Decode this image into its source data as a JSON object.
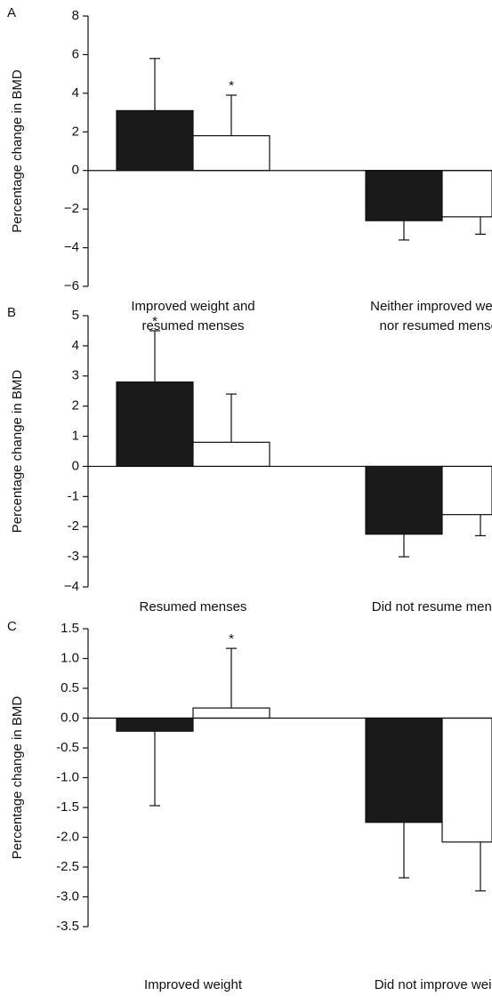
{
  "chart_data": [
    {
      "type": "bar",
      "panel_label": "A",
      "ylabel": "Percentage change in BMD",
      "categories": [
        [
          "Improved weight and",
          "resumed menses"
        ],
        [
          "Neither improved weight",
          "nor resumed menses"
        ]
      ],
      "series": [
        {
          "color": "#1a1a1a",
          "values": [
            3.1,
            -2.6
          ],
          "errors": [
            2.7,
            1.0
          ]
        },
        {
          "color": "#ffffff",
          "values": [
            1.8,
            -2.4
          ],
          "errors": [
            2.1,
            0.9
          ]
        }
      ],
      "annotations": [
        {
          "text": "*",
          "series": 1,
          "category": 0
        }
      ],
      "ylim": [
        -6,
        8
      ],
      "yticks": [
        {
          "value": -6,
          "label": "−6"
        },
        {
          "value": -4,
          "label": "−4"
        },
        {
          "value": -2,
          "label": "−2"
        },
        0,
        2,
        4,
        6,
        8
      ]
    },
    {
      "type": "bar",
      "panel_label": "B",
      "ylabel": "Percentage change in BMD",
      "categories": [
        [
          "Resumed menses"
        ],
        [
          "Did not resume menses"
        ]
      ],
      "series": [
        {
          "color": "#1a1a1a",
          "values": [
            2.8,
            -2.25
          ],
          "errors": [
            1.7,
            0.75
          ]
        },
        {
          "color": "#ffffff",
          "values": [
            0.8,
            -1.6
          ],
          "errors": [
            1.6,
            0.7
          ]
        }
      ],
      "annotations": [
        {
          "text": "*",
          "series": 0,
          "category": 0
        }
      ],
      "ylim": [
        -4,
        5
      ],
      "yticks": [
        {
          "value": -4,
          "label": "−4"
        },
        -3,
        -2,
        -1,
        0,
        1,
        2,
        3,
        4,
        5
      ]
    },
    {
      "type": "bar",
      "panel_label": "C",
      "ylabel": "Percentage change in BMD",
      "categories": [
        [
          "Improved weight"
        ],
        [
          "Did not improve weight"
        ]
      ],
      "series": [
        {
          "color": "#1a1a1a",
          "values": [
            -0.22,
            -1.75
          ],
          "errors": [
            1.25,
            0.93
          ]
        },
        {
          "color": "#ffffff",
          "values": [
            0.17,
            -2.08
          ],
          "errors": [
            1.0,
            0.82
          ]
        }
      ],
      "annotations": [
        {
          "text": "*",
          "series": 1,
          "category": 0
        }
      ],
      "ylim": [
        -3.5,
        1.5
      ],
      "yticks": [
        {
          "value": -3.5,
          "label": "-3.5"
        },
        {
          "value": -3,
          "label": "-3.0"
        },
        {
          "value": -2.5,
          "label": "-2.5"
        },
        {
          "value": -2,
          "label": "-2.0"
        },
        {
          "value": -1.5,
          "label": "-1.5"
        },
        {
          "value": -1,
          "label": "-1.0"
        },
        {
          "value": -0.5,
          "label": "-0.5"
        },
        {
          "value": 0,
          "label": "0.0"
        },
        {
          "value": 0.5,
          "label": "0.5"
        },
        {
          "value": 1,
          "label": "1.0"
        },
        {
          "value": 1.5,
          "label": "1.5"
        }
      ]
    }
  ]
}
